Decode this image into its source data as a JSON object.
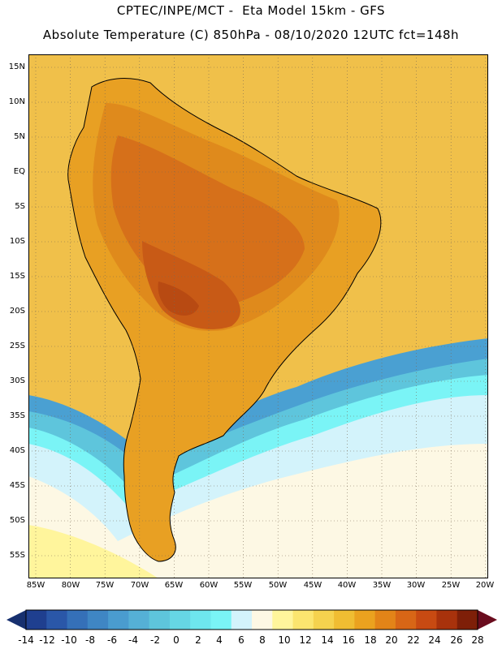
{
  "header": {
    "line1": "CPTEC/INPE/MCT -  Eta Model 15km - GFS",
    "line2": "Absolute Temperature (C) 850hPa - 08/10/2020 12UTC fct=148h"
  },
  "axes": {
    "lat_labels": [
      "15N",
      "10N",
      "5N",
      "EQ",
      "5S",
      "10S",
      "15S",
      "20S",
      "25S",
      "30S",
      "35S",
      "40S",
      "45S",
      "50S",
      "55S"
    ],
    "lon_labels": [
      "85W",
      "80W",
      "75W",
      "70W",
      "65W",
      "60W",
      "55W",
      "50W",
      "45W",
      "40W",
      "35W",
      "30W",
      "25W",
      "20W"
    ]
  },
  "colorbar": {
    "labels": [
      "-14",
      "-12",
      "-10",
      "-8",
      "-6",
      "-4",
      "-2",
      "0",
      "2",
      "4",
      "6",
      "8",
      "10",
      "12",
      "14",
      "16",
      "18",
      "20",
      "22",
      "24",
      "26",
      "28"
    ],
    "colors": [
      "#1f3f8f",
      "#2a57a8",
      "#3570b8",
      "#3f86c4",
      "#4a9ccf",
      "#55b0d6",
      "#5ec5dc",
      "#66d6e4",
      "#6ee6ee",
      "#7af4f6",
      "#d3f3fb",
      "#fdf8e4",
      "#fff59c",
      "#fbe56f",
      "#f5d24e",
      "#f0bd32",
      "#eba21f",
      "#e38418",
      "#d86616",
      "#c84a12",
      "#a8320c",
      "#7e1f08"
    ],
    "under_color": "#17306f",
    "over_color": "#6a0c1e"
  },
  "map": {
    "ocean_color": "#f0c04a",
    "cold_colors": [
      "#4aa0d2",
      "#5ec5dc",
      "#7af4f6",
      "#d3f3fb",
      "#fdf8e4",
      "#fff59c"
    ],
    "land_colors": [
      "#e8a023",
      "#df8a1c",
      "#d6701a",
      "#c85a16",
      "#b84a12"
    ]
  }
}
